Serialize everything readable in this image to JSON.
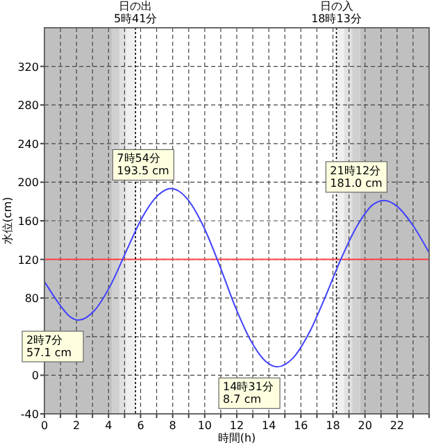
{
  "chart_data": {
    "type": "line",
    "xlabel": "時間(h)",
    "ylabel": "水位(cm)",
    "xlim": [
      0,
      24
    ],
    "ylim": [
      -40,
      360
    ],
    "xticks": [
      0,
      {
        "value": 1,
        "label": null
      },
      2,
      {
        "value": 3,
        "label": null
      },
      4,
      {
        "value": 5,
        "label": null
      },
      6,
      {
        "value": 7,
        "label": null
      },
      8,
      {
        "value": 9,
        "label": null
      },
      10,
      {
        "value": 11,
        "label": null
      },
      12,
      {
        "value": 13,
        "label": null
      },
      14,
      {
        "value": 15,
        "label": null
      },
      16,
      {
        "value": 17,
        "label": null
      },
      18,
      {
        "value": 19,
        "label": null
      },
      20,
      {
        "value": 21,
        "label": null
      },
      22,
      {
        "value": 23,
        "label": null
      },
      {
        "value": 24,
        "label": null
      }
    ],
    "yticks": [
      -40,
      0,
      {
        "value": 40,
        "label": null
      },
      80,
      120,
      160,
      200,
      240,
      280,
      320
    ],
    "grid": true,
    "marker": "none",
    "line_style": "solid",
    "series": [
      {
        "color": "#4040ff",
        "x": [
          0,
          0.5,
          1,
          1.5,
          2.117,
          3.117,
          4.117,
          5.117,
          6.117,
          7.117,
          7.9,
          8.9,
          9.9,
          10.9,
          11.9,
          12.9,
          13.9,
          14.517,
          15.517,
          16.517,
          17.517,
          18.517,
          19.517,
          20.517,
          21.2,
          22,
          23,
          24
        ],
        "values": [
          97,
          84,
          72,
          62,
          57.1,
          67,
          93,
          129,
          164,
          187,
          193.5,
          183,
          155,
          115,
          71,
          35,
          13,
          8.7,
          18,
          44,
          81,
          121,
          155,
          177,
          181,
          175,
          155,
          127
        ]
      }
    ],
    "bands": [
      {
        "axis": "x",
        "from": 0,
        "to": 4.2,
        "color": "#c0c0c0"
      },
      {
        "axis": "x",
        "from": 4.2,
        "to": 4.7,
        "color": "#d0d0d0"
      },
      {
        "axis": "x",
        "from": 4.7,
        "to": 5.1,
        "color": "#e0e0e0"
      },
      {
        "axis": "x",
        "from": 5.1,
        "to": 5.7,
        "color": "#f0f0f0"
      },
      {
        "axis": "x",
        "from": 18.2,
        "to": 18.7,
        "color": "#f0f0f0"
      },
      {
        "axis": "x",
        "from": 18.7,
        "to": 19.2,
        "color": "#e0e0e0"
      },
      {
        "axis": "x",
        "from": 19.2,
        "to": 19.7,
        "color": "#d0d0d0"
      },
      {
        "axis": "x",
        "from": 19.7,
        "to": 24,
        "color": "#c0c0c0"
      }
    ],
    "ref_lines": [
      {
        "axis": "y",
        "value": 120,
        "color": "#ff4040",
        "line_style": "solid"
      },
      {
        "axis": "x",
        "value": 5.683,
        "label": "日の出\n5時41分",
        "color": "#000000",
        "line_style": "dotted"
      },
      {
        "axis": "x",
        "value": 18.217,
        "label": "日の入\n18時13分",
        "color": "#000000",
        "line_style": "dotted"
      }
    ],
    "annotations": [
      {
        "text": "2時7分\n57.1 cm",
        "x": 2.117,
        "y": 57.1
      },
      {
        "text": "7時54分\n193.5 cm",
        "x": 7.9,
        "y": 193.5
      },
      {
        "text": "14時31分\n8.7 cm",
        "x": 14.517,
        "y": 8.7
      },
      {
        "text": "21時12分\n181.0 cm",
        "x": 21.2,
        "y": 181
      }
    ]
  }
}
